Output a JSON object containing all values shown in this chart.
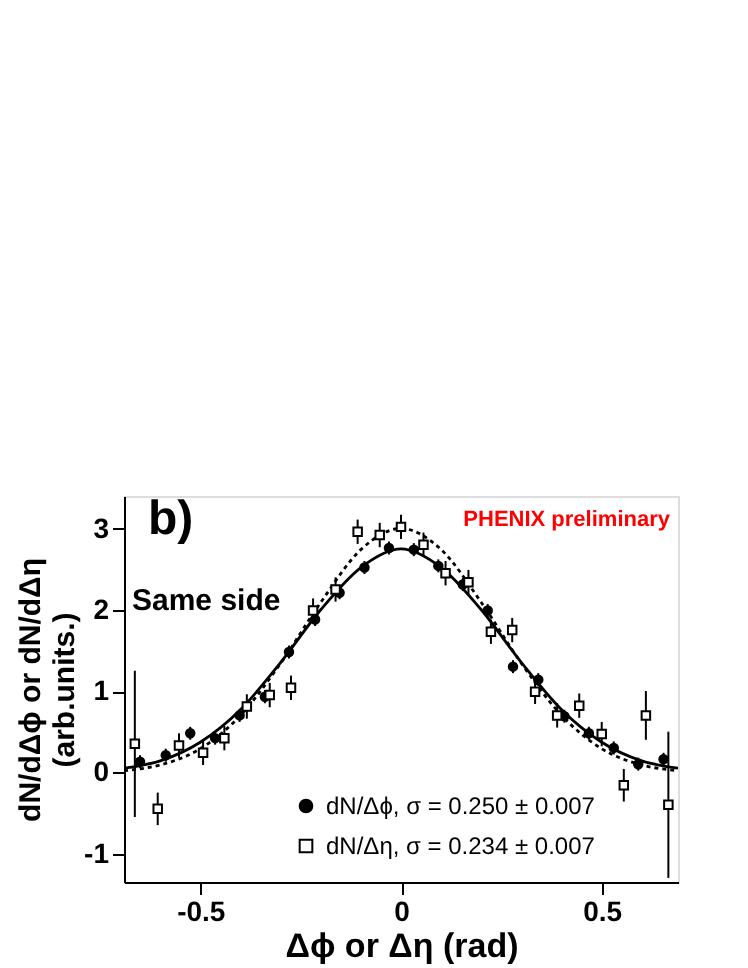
{
  "chart_data": {
    "type": "scatter",
    "xlabel": "Δϕ or Δη (rad)",
    "ylabel": "dN/dΔϕ or dN/dΔη (arb.units.)",
    "annotations": [
      "b)",
      "Same side",
      "PHENIX preliminary"
    ],
    "xlim": [
      -0.69,
      0.69
    ],
    "ylim": [
      -1.35,
      3.4
    ],
    "xticks": [
      -0.5,
      0,
      0.5
    ],
    "yticks": [
      -1,
      0,
      1,
      2,
      3
    ],
    "grid": false,
    "legend": "bottom",
    "series": [
      {
        "name": "dN/Δϕ, σ = 0.250 ± 0.007",
        "type": "scatter",
        "marker": "circle",
        "color": "#000000",
        "x": [
          -0.65,
          -0.586,
          -0.525,
          -0.463,
          -0.402,
          -0.339,
          -0.279,
          -0.214,
          -0.153,
          -0.091,
          -0.03,
          0.032,
          0.093,
          0.154,
          0.216,
          0.279,
          0.342,
          0.407,
          0.468,
          0.53,
          0.591,
          0.654
        ],
        "values": [
          0.13,
          0.21,
          0.48,
          0.42,
          0.7,
          0.93,
          1.48,
          1.88,
          2.21,
          2.52,
          2.76,
          2.74,
          2.54,
          2.31,
          1.99,
          1.3,
          1.14,
          0.69,
          0.48,
          0.3,
          0.1,
          0.16
        ],
        "errors": [
          0.08,
          0.08,
          0.08,
          0.08,
          0.08,
          0.08,
          0.08,
          0.08,
          0.08,
          0.08,
          0.08,
          0.08,
          0.08,
          0.08,
          0.08,
          0.08,
          0.08,
          0.08,
          0.08,
          0.08,
          0.08,
          0.08
        ]
      },
      {
        "name": "dN/Δη, σ = 0.234 ± 0.007",
        "type": "scatter",
        "marker": "square",
        "color": "#000000",
        "x": [
          -0.663,
          -0.606,
          -0.553,
          -0.493,
          -0.44,
          -0.384,
          -0.327,
          -0.274,
          -0.219,
          -0.163,
          -0.108,
          -0.053,
          0.0,
          0.056,
          0.111,
          0.168,
          0.224,
          0.277,
          0.334,
          0.389,
          0.444,
          0.5,
          0.555,
          0.61,
          0.666
        ],
        "values": [
          0.35,
          -0.45,
          0.33,
          0.24,
          0.42,
          0.81,
          0.95,
          1.04,
          1.99,
          2.25,
          2.96,
          2.92,
          3.02,
          2.8,
          2.45,
          2.34,
          1.73,
          1.75,
          0.99,
          0.7,
          0.82,
          0.47,
          -0.16,
          0.7,
          -0.4
        ],
        "errors": [
          0.9,
          0.2,
          0.15,
          0.15,
          0.15,
          0.15,
          0.15,
          0.15,
          0.15,
          0.15,
          0.15,
          0.15,
          0.15,
          0.15,
          0.15,
          0.15,
          0.15,
          0.15,
          0.15,
          0.15,
          0.15,
          0.15,
          0.2,
          0.3,
          0.9
        ]
      },
      {
        "type": "line",
        "marker": "none",
        "line_style": "solid",
        "color": "#000000",
        "x": [
          -0.69,
          -0.6,
          -0.5,
          -0.4,
          -0.3,
          -0.2,
          -0.1,
          0,
          0.1,
          0.2,
          0.3,
          0.4,
          0.5,
          0.6,
          0.69
        ],
        "values": [
          0.05,
          0.14,
          0.37,
          0.77,
          1.35,
          2.0,
          2.52,
          2.75,
          2.52,
          2.0,
          1.35,
          0.77,
          0.37,
          0.14,
          0.05
        ]
      },
      {
        "type": "line",
        "marker": "none",
        "line_style": "dotted",
        "color": "#000000",
        "x": [
          -0.69,
          -0.6,
          -0.5,
          -0.4,
          -0.3,
          -0.2,
          -0.1,
          0,
          0.1,
          0.2,
          0.3,
          0.4,
          0.5,
          0.6,
          0.69
        ],
        "values": [
          0.02,
          0.09,
          0.29,
          0.7,
          1.34,
          2.09,
          2.74,
          3.0,
          2.74,
          2.09,
          1.34,
          0.7,
          0.29,
          0.09,
          0.02
        ]
      }
    ]
  }
}
